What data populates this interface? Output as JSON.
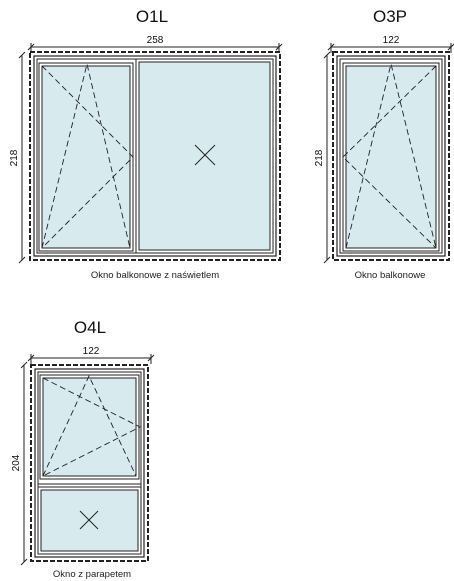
{
  "windows": [
    {
      "code": "O1L",
      "width": "258",
      "height": "218",
      "caption": "Okno balkonowe z naświetlem"
    },
    {
      "code": "O3P",
      "width": "122",
      "height": "218",
      "caption": "Okno balkonowe"
    },
    {
      "code": "O4L",
      "width": "122",
      "height": "204",
      "caption": "Okno z parapetem"
    }
  ],
  "colors": {
    "glass": "#d7ebee",
    "line": "#222222"
  }
}
